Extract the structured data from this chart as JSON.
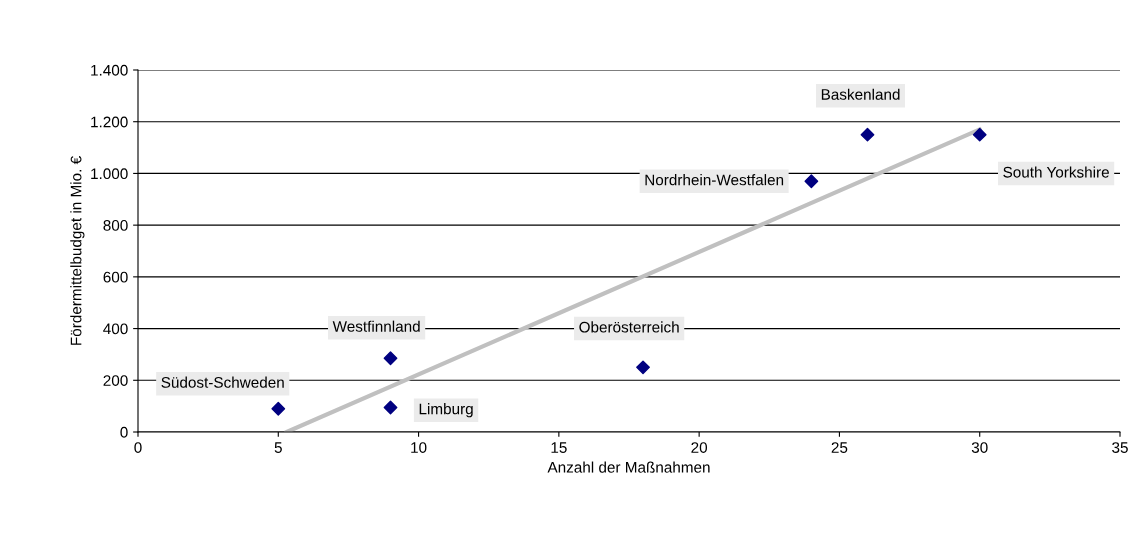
{
  "chart_data": {
    "type": "scatter",
    "xlabel": "Anzahl der Maßnahmen",
    "ylabel": "Fördermittelbudget in Mio. €",
    "series": [
      {
        "color": "#000080",
        "marker": "diamond",
        "x": [
          5,
          9,
          9,
          18,
          24,
          26,
          30
        ],
        "values": [
          90,
          285,
          95,
          250,
          970,
          1150,
          1150
        ]
      },
      {
        "type": "line",
        "color": "#c0c0c0",
        "marker": "none",
        "x": [
          5.3,
          30
        ],
        "values": [
          0,
          1170
        ]
      }
    ],
    "annotations": [
      {
        "text": "Südost-Schweden",
        "x": 5,
        "y": 90
      },
      {
        "text": "Westfinnland",
        "x": 9,
        "y": 285
      },
      {
        "text": "Limburg",
        "x": 9,
        "y": 95
      },
      {
        "text": "Oberösterreich",
        "x": 18,
        "y": 250
      },
      {
        "text": "Nordrhein-Westfalen",
        "x": 24,
        "y": 970
      },
      {
        "text": "Baskenland",
        "x": 26,
        "y": 1150
      },
      {
        "text": "South Yorkshire",
        "x": 30,
        "y": 1150
      }
    ],
    "xlim": [
      0,
      35
    ],
    "xticks": [
      0,
      5,
      10,
      15,
      20,
      25,
      30,
      35
    ],
    "ylim": [
      0,
      1400
    ],
    "yticks": [
      0,
      200,
      400,
      600,
      800,
      {
        "value": 1000,
        "label": "1.000"
      },
      {
        "value": 1200,
        "label": "1.200"
      },
      {
        "value": 1400,
        "label": "1.400"
      }
    ],
    "grid": "y"
  }
}
